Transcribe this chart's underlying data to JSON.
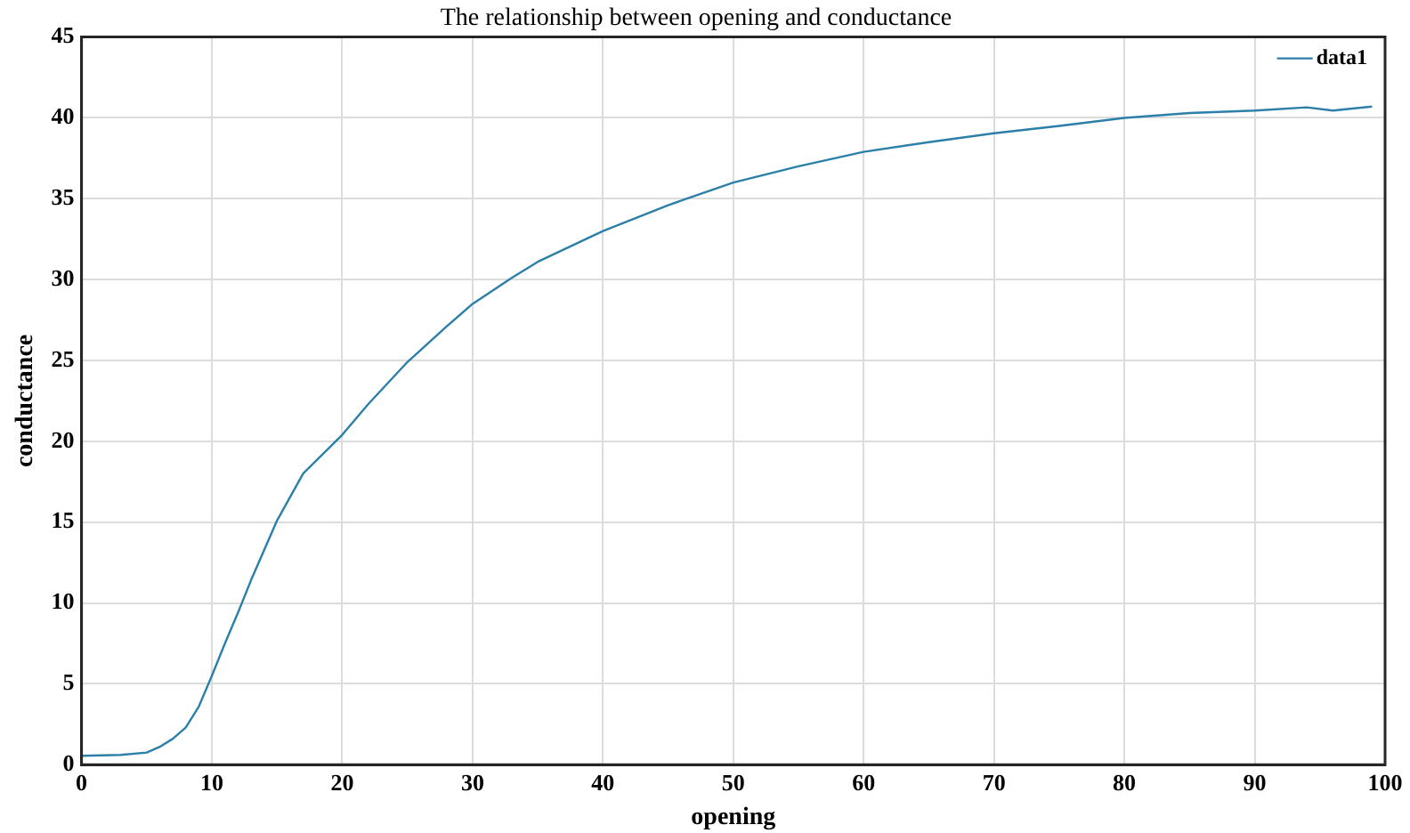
{
  "chart_data": {
    "type": "line",
    "title": "The relationship between opening and conductance",
    "xlabel": "opening",
    "ylabel": "conductance",
    "xlim": [
      0,
      100
    ],
    "xticks": [
      0,
      10,
      20,
      30,
      40,
      50,
      60,
      70,
      80,
      90,
      100
    ],
    "ylim": [
      0,
      45
    ],
    "yticks": [
      0,
      5,
      10,
      15,
      20,
      25,
      30,
      35,
      40,
      45
    ],
    "grid": true,
    "legend": "top right",
    "marker": "none",
    "line_style": "solid",
    "series": [
      {
        "name": "data1",
        "color": "#2b7fa8",
        "x": [
          0,
          3,
          5,
          6,
          7,
          8,
          9,
          10,
          11,
          12,
          13,
          15,
          17,
          20,
          22,
          25,
          28,
          30,
          33,
          35,
          40,
          45,
          50,
          55,
          60,
          65,
          70,
          75,
          80,
          85,
          90,
          94,
          96,
          99
        ],
        "values": [
          0.55,
          0.6,
          0.75,
          1.1,
          1.6,
          2.3,
          3.6,
          5.5,
          7.5,
          9.4,
          11.4,
          15.1,
          18,
          20.4,
          22.3,
          24.9,
          27.1,
          28.5,
          30.1,
          31.1,
          33,
          34.6,
          36,
          37,
          37.9,
          38.5,
          39.05,
          39.5,
          40,
          40.3,
          40.45,
          40.65,
          40.45,
          40.7
        ]
      }
    ]
  }
}
